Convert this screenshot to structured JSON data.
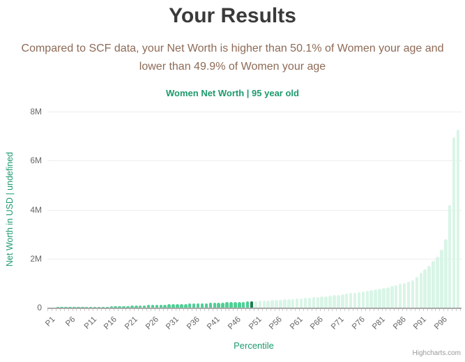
{
  "header": {
    "title": "Your Results",
    "subtitle_line1": "Compared to SCF data, your Net Worth is higher than 50.1% of Women your age and",
    "subtitle_line2": "lower than 49.9% of Women your age"
  },
  "colors": {
    "title_text": "#3a3a3a",
    "subtitle_text": "#8d6a56",
    "accent_green": "#1d9a6c",
    "bar_below_user": "#4ed096",
    "bar_user": "#16804b",
    "bar_above_user": "#d9f5e7",
    "tick_label": "#666666",
    "gridline": "#ededed",
    "credits_text": "#999999"
  },
  "credits": {
    "label": "Highcharts.com"
  },
  "chart_data": {
    "type": "bar",
    "title": "Women Net Worth | 95 year old",
    "xlabel": "Percentile",
    "ylabel": "Net Worth in USD | undefined",
    "ylim": [
      0,
      8000000
    ],
    "grid": true,
    "legend_position": "none",
    "ytick_values": [
      0,
      2000000,
      4000000,
      6000000,
      8000000
    ],
    "ytick_labels": [
      "0",
      "2M",
      "4M",
      "6M",
      "8M"
    ],
    "xtick_every": 5,
    "xtick_labels": [
      "P1",
      "P6",
      "P11",
      "P16",
      "P21",
      "P26",
      "P31",
      "P36",
      "P41",
      "P46",
      "P51",
      "P56",
      "P61",
      "P66",
      "P71",
      "P76",
      "P81",
      "P86",
      "P91",
      "P96"
    ],
    "highlight_index": 49,
    "highlight_meaning": "user percentile P50",
    "categories": [
      "P1",
      "P2",
      "P3",
      "P4",
      "P5",
      "P6",
      "P7",
      "P8",
      "P9",
      "P10",
      "P11",
      "P12",
      "P13",
      "P14",
      "P15",
      "P16",
      "P17",
      "P18",
      "P19",
      "P20",
      "P21",
      "P22",
      "P23",
      "P24",
      "P25",
      "P26",
      "P27",
      "P28",
      "P29",
      "P30",
      "P31",
      "P32",
      "P33",
      "P34",
      "P35",
      "P36",
      "P37",
      "P38",
      "P39",
      "P40",
      "P41",
      "P42",
      "P43",
      "P44",
      "P45",
      "P46",
      "P47",
      "P48",
      "P49",
      "P50",
      "P51",
      "P52",
      "P53",
      "P54",
      "P55",
      "P56",
      "P57",
      "P58",
      "P59",
      "P60",
      "P61",
      "P62",
      "P63",
      "P64",
      "P65",
      "P66",
      "P67",
      "P68",
      "P69",
      "P70",
      "P71",
      "P72",
      "P73",
      "P74",
      "P75",
      "P76",
      "P77",
      "P78",
      "P79",
      "P80",
      "P81",
      "P82",
      "P83",
      "P84",
      "P85",
      "P86",
      "P87",
      "P88",
      "P89",
      "P90",
      "P91",
      "P92",
      "P93",
      "P94",
      "P95",
      "P96",
      "P97",
      "P98",
      "P99",
      "P100"
    ],
    "values": [
      0,
      0,
      500,
      1500,
      4000,
      7000,
      10000,
      13000,
      16000,
      19000,
      22000,
      26000,
      30000,
      35000,
      41000,
      47000,
      53000,
      59000,
      65000,
      71000,
      77000,
      83000,
      89000,
      95000,
      101000,
      107000,
      113000,
      119000,
      125000,
      131000,
      137000,
      143000,
      149000,
      155000,
      161000,
      167000,
      173000,
      179000,
      185000,
      191000,
      197000,
      203000,
      209000,
      215000,
      221000,
      228000,
      235000,
      242000,
      249000,
      257000,
      265000,
      273000,
      282000,
      291000,
      301000,
      311000,
      321000,
      332000,
      343000,
      355000,
      367000,
      380000,
      393000,
      407000,
      421000,
      436000,
      452000,
      468000,
      485000,
      503000,
      522000,
      542000,
      563000,
      585000,
      608000,
      632000,
      657000,
      683000,
      711000,
      740000,
      771000,
      804000,
      839000,
      876000,
      916000,
      959000,
      1006000,
      1057000,
      1113000,
      1250000,
      1420000,
      1570000,
      1710000,
      1900000,
      2090000,
      2370000,
      2800000,
      4190000,
      6950000,
      7260000
    ]
  }
}
